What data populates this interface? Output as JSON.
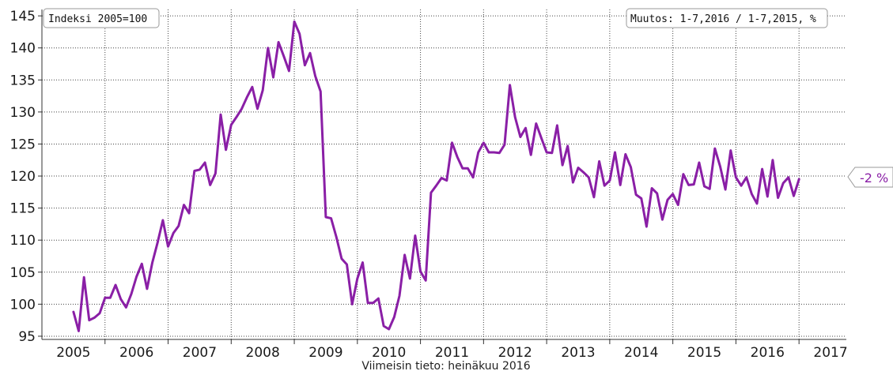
{
  "chart_data": {
    "type": "line",
    "title": "",
    "xlabel": "Viimeisin tieto: heinäkuu 2016",
    "ylabel": "",
    "index_label": "Indeksi 2005=100",
    "change_label": "Muutos: 1-7,2016 / 1-7,2015, %",
    "change_value": "-2 %",
    "line_color": "#8a1fa6",
    "grid": true,
    "ylim": [
      94.5,
      146
    ],
    "xlim": [
      2004.5,
      2017.25
    ],
    "y_ticks": [
      "95",
      "100",
      "105",
      "110",
      "115",
      "120",
      "125",
      "130",
      "135",
      "140",
      "145"
    ],
    "x_ticks": [
      "2005",
      "2006",
      "2007",
      "2008",
      "2009",
      "2010",
      "2011",
      "2012",
      "2013",
      "2014",
      "2015",
      "2016",
      "2017"
    ],
    "series": [
      {
        "name": "",
        "start": "2005-01",
        "frequency": "monthly",
        "values": [
          98.8,
          95.8,
          104.2,
          97.5,
          97.9,
          98.6,
          101.0,
          101.0,
          103.0,
          100.8,
          99.5,
          101.6,
          104.3,
          106.3,
          102.4,
          106.5,
          109.6,
          113.1,
          109.0,
          111.1,
          112.2,
          115.5,
          114.2,
          120.8,
          121.0,
          122.1,
          118.6,
          120.4,
          129.6,
          124.1,
          128.0,
          129.2,
          130.5,
          132.3,
          133.9,
          130.5,
          133.4,
          140.0,
          135.4,
          140.9,
          138.7,
          136.4,
          144.1,
          142.2,
          137.3,
          139.2,
          135.6,
          133.2,
          113.6,
          113.4,
          110.5,
          107.1,
          106.2,
          100.0,
          104.0,
          106.5,
          100.2,
          100.2,
          100.9,
          96.6,
          96.1,
          98.0,
          101.3,
          107.7,
          104.0,
          110.7,
          105.1,
          103.7,
          117.4,
          118.5,
          119.7,
          119.3,
          125.2,
          123.0,
          121.2,
          121.2,
          119.8,
          123.7,
          125.2,
          123.7,
          123.7,
          123.6,
          124.9,
          134.2,
          129.2,
          126.1,
          127.5,
          123.3,
          128.2,
          125.9,
          123.7,
          123.6,
          127.9,
          121.7,
          124.7,
          119.0,
          121.3,
          120.6,
          119.8,
          116.7,
          122.3,
          118.5,
          119.3,
          123.7,
          118.6,
          123.4,
          121.4,
          117.1,
          116.5,
          112.1,
          118.1,
          117.3,
          113.2,
          116.3,
          117.2,
          115.5,
          120.3,
          118.6,
          118.7,
          122.1,
          118.4,
          118.0,
          124.3,
          121.5,
          117.9,
          124.0,
          119.8,
          118.5,
          119.8,
          117.2,
          115.7,
          121.1,
          116.8,
          122.5,
          116.6,
          118.9,
          119.8,
          116.9,
          119.5
        ]
      }
    ]
  }
}
